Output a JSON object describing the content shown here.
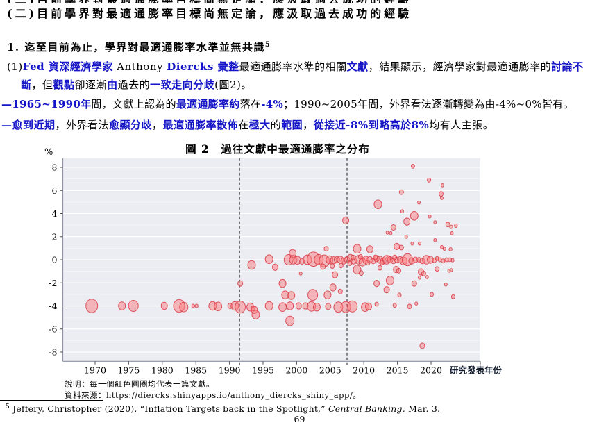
{
  "colors": {
    "text_blue": "#1414c8",
    "bubble_fill": "#f97b80",
    "bubble_stroke": "#d93a43",
    "plot_bg": "#ebedf2",
    "grid_line": "#ffffff",
    "dashed_line": "#333333",
    "axis_line": "#8a93a6"
  },
  "page": {
    "top_clipped_line": "(二)目前學界對最適通膨率目標尚無定論，應汲取過去成功的經驗",
    "heading": "(二)目前學界對最適通膨率目標尚無定論，應汲取過去成功的經驗",
    "point1": {
      "text": "1. 迄至目前為止，學界對最適通膨率水準並無共識",
      "footnote_ref": "5"
    },
    "para1": {
      "segments": [
        {
          "t": "(1)",
          "c": "blk"
        },
        {
          "t": "Fed 資深經濟學家",
          "c": "blu"
        },
        {
          "t": " Anthony ",
          "c": "blk"
        },
        {
          "t": "Diercks 彙整",
          "c": "blu"
        },
        {
          "t": "最適通膨率水準的相關",
          "c": "blk"
        },
        {
          "t": "文獻",
          "c": "blu"
        },
        {
          "t": "，結果顯示，經濟學家對最適通膨率的",
          "c": "blk"
        },
        {
          "t": "討論不斷",
          "c": "blu"
        },
        {
          "t": "，但",
          "c": "blk"
        },
        {
          "t": "觀點",
          "c": "blu"
        },
        {
          "t": "卻逐漸",
          "c": "blk"
        },
        {
          "t": "由",
          "c": "blu"
        },
        {
          "t": "過去的",
          "c": "blk"
        },
        {
          "t": "一致走向分歧",
          "c": "blu"
        },
        {
          "t": "(圖2)。",
          "c": "blk"
        }
      ]
    },
    "bullet1": {
      "segments": [
        {
          "t": "—1965~1990年",
          "c": "blu"
        },
        {
          "t": "間，文獻上認為的",
          "c": "blk"
        },
        {
          "t": "最適通膨率約",
          "c": "blu"
        },
        {
          "t": "落在",
          "c": "blk"
        },
        {
          "t": "-4%",
          "c": "blu"
        },
        {
          "t": "；1990~2005年間，外界看法逐漸轉變為由-4%~0%皆有。",
          "c": "blk"
        }
      ]
    },
    "bullet2": {
      "segments": [
        {
          "t": "—愈到近期",
          "c": "blu"
        },
        {
          "t": "，外界看法",
          "c": "blk"
        },
        {
          "t": "愈顯分歧",
          "c": "blu"
        },
        {
          "t": "，",
          "c": "blk"
        },
        {
          "t": "最適通膨率散佈",
          "c": "blu"
        },
        {
          "t": "在",
          "c": "blk"
        },
        {
          "t": "極大",
          "c": "blu"
        },
        {
          "t": "的",
          "c": "blk"
        },
        {
          "t": "範圍",
          "c": "blu"
        },
        {
          "t": "，",
          "c": "blk"
        },
        {
          "t": "從接近-8%到略高於8%",
          "c": "blu"
        },
        {
          "t": "均有人主張。",
          "c": "blk"
        }
      ]
    },
    "notes": {
      "explain": "說明：每一個紅色圓圈均代表一篇文獻。",
      "source": "資料來源：https://diercks.shinyapps.io/anthony_diercks_shiny_app/。"
    },
    "footnote": {
      "marker": "5",
      "before_italic": " Jeffery, Christopher (2020), “Inflation Targets back in the Spotlight,” ",
      "italic": "Central Banking",
      "after_italic": ", Mar. 3."
    },
    "page_number": "69"
  },
  "chart_data": {
    "type": "scatter",
    "title": "圖 2　過往文獻中最適通膨率之分布",
    "y_unit_label": "%",
    "xlabel": "研究發表年份",
    "x_ticks": [
      1970,
      1975,
      1980,
      1985,
      1990,
      1995,
      2000,
      2005,
      2010,
      2015,
      2020
    ],
    "y_ticks": [
      8,
      6,
      4,
      2,
      0,
      -2,
      -4,
      -6,
      -8
    ],
    "xlim": [
      1965.2,
      2027.3
    ],
    "ylim": [
      -8.8,
      8.8
    ],
    "grid": true,
    "dashed_lines_x": [
      1991.5,
      2007.5
    ],
    "bubble_note": "each bubble = one paper; [year, optimal inflation %, radius px]",
    "bubbles": [
      [
        1969.5,
        -4,
        8.5
      ],
      [
        1974,
        -4,
        5
      ],
      [
        1975.7,
        -4,
        7
      ],
      [
        1980.3,
        -4,
        4.5
      ],
      [
        1982.5,
        -4,
        8
      ],
      [
        1983.2,
        -4.1,
        6
      ],
      [
        1984.6,
        -4,
        2.2
      ],
      [
        1985.1,
        -4,
        2.2
      ],
      [
        1987.5,
        -4,
        5.5
      ],
      [
        1988.3,
        -4.05,
        5.5
      ],
      [
        1990.1,
        -4,
        3.5
      ],
      [
        1990.8,
        -4,
        5.5
      ],
      [
        1991.6,
        -4.1,
        7.5
      ],
      [
        1993.1,
        -4.1,
        5
      ],
      [
        1993.5,
        -4.2,
        3
      ],
      [
        1993.7,
        -4.35,
        4.5
      ],
      [
        1993.9,
        -4.75,
        5.5
      ],
      [
        1995.9,
        -4,
        5.5
      ],
      [
        1997.9,
        -4.1,
        5.5
      ],
      [
        1999,
        -4,
        5
      ],
      [
        2000.3,
        -4,
        4
      ],
      [
        2001.3,
        -4,
        4
      ],
      [
        2002.2,
        -4.05,
        6
      ],
      [
        2003,
        -4.1,
        5
      ],
      [
        2004.7,
        -4.05,
        4
      ],
      [
        2006.2,
        -4.1,
        6.5
      ],
      [
        2007.3,
        -4.1,
        7
      ],
      [
        2008.3,
        -4.05,
        7
      ],
      [
        2010.2,
        -4.1,
        5.5
      ],
      [
        2010.7,
        -4.05,
        4.5
      ],
      [
        2011.9,
        -3.85,
        2.5
      ],
      [
        2014.6,
        -3.95,
        2.5
      ],
      [
        2016.8,
        -4.05,
        3
      ],
      [
        2017.8,
        -3.8,
        2
      ],
      [
        1999,
        -5.3,
        6
      ],
      [
        2018.7,
        -7.45,
        3.5
      ],
      [
        1991.6,
        -2.05,
        3.5
      ],
      [
        1997.9,
        -2.05,
        5
      ],
      [
        1998.3,
        -3.05,
        5
      ],
      [
        1999.2,
        -3.1,
        5
      ],
      [
        2002.4,
        -3.05,
        7
      ],
      [
        2004.6,
        -3.05,
        5
      ],
      [
        2005.4,
        -2.4,
        4.5
      ],
      [
        2005.7,
        -1.3,
        4
      ],
      [
        2006.5,
        -2.75,
        3
      ],
      [
        2011.9,
        -2.05,
        4
      ],
      [
        2013.9,
        -1.8,
        5.5
      ],
      [
        2013.4,
        -2.6,
        4
      ],
      [
        2015.3,
        -3.05,
        2.5
      ],
      [
        2017.5,
        -2.05,
        3.5
      ],
      [
        2018.3,
        -1.55,
        2
      ],
      [
        2019.4,
        -1.5,
        2
      ],
      [
        2020.1,
        -3,
        2.5
      ],
      [
        2022.2,
        -2.15,
        2
      ],
      [
        2023.3,
        -3.2,
        2.5
      ],
      [
        1993.3,
        -0.45,
        5.5
      ],
      [
        1996.8,
        -0.65,
        4
      ],
      [
        2000.6,
        -1.2,
        2
      ],
      [
        2009,
        -0.85,
        5.5
      ],
      [
        2009.6,
        -1.15,
        3
      ],
      [
        2012.4,
        -0.7,
        3
      ],
      [
        2014.8,
        -0.85,
        4
      ],
      [
        2015.2,
        -0.95,
        3
      ],
      [
        2018.5,
        -1.05,
        4
      ],
      [
        2018.9,
        -1.2,
        3
      ],
      [
        2020.9,
        -0.8,
        3
      ],
      [
        2022.7,
        -0.95,
        2
      ],
      [
        2023,
        -0.9,
        2
      ],
      [
        1995.9,
        0.05,
        5.5
      ],
      [
        1999.4,
        0.55,
        5
      ],
      [
        2004.4,
        0.95,
        3
      ],
      [
        2009,
        0.95,
        5.5
      ],
      [
        2010.9,
        0.9,
        4.5
      ],
      [
        2014.9,
        1.15,
        4
      ],
      [
        2015.6,
        1.05,
        3
      ],
      [
        2017.2,
        1.4,
        2
      ],
      [
        2018.3,
        1.4,
        2
      ],
      [
        2020.6,
        1.7,
        2
      ],
      [
        2021.6,
        1.1,
        2
      ],
      [
        2022,
        0.95,
        2
      ],
      [
        2022.9,
        0.9,
        2.2
      ],
      [
        2007.3,
        3.4,
        4.5
      ],
      [
        2012.1,
        4.8,
        5.5
      ],
      [
        2013.5,
        2.35,
        2
      ],
      [
        2014,
        2.3,
        2
      ],
      [
        2014.4,
        2.8,
        3.5
      ],
      [
        2015.7,
        4.2,
        2
      ],
      [
        2015.6,
        5.85,
        3
      ],
      [
        2016.4,
        3.3,
        4.5
      ],
      [
        2016.3,
        2,
        2
      ],
      [
        2017.5,
        3.8,
        5.5
      ],
      [
        2018.2,
        4.95,
        2
      ],
      [
        2017.3,
        8.1,
        2.5
      ],
      [
        2019.7,
        6.9,
        2.5
      ],
      [
        2019.8,
        3.75,
        2
      ],
      [
        2020.6,
        3.25,
        2
      ],
      [
        2021.7,
        6.45,
        2
      ],
      [
        2021.5,
        5.7,
        3
      ],
      [
        2021.6,
        5.35,
        2
      ],
      [
        2022.5,
        3.05,
        3
      ],
      [
        2023,
        2.85,
        2.2
      ],
      [
        2023.7,
        2.95,
        2.2
      ],
      [
        2023.1,
        2.3,
        2
      ],
      [
        1998.8,
        0,
        6.5
      ],
      [
        1999.5,
        0,
        5.5
      ],
      [
        2000.1,
        -0.05,
        5
      ],
      [
        2000.8,
        -0.15,
        3.5
      ],
      [
        2001.6,
        0,
        6
      ],
      [
        2002.5,
        0.05,
        9
      ],
      [
        2003.3,
        0,
        6.5
      ],
      [
        2004.1,
        -0.1,
        7.5
      ],
      [
        2004.9,
        0,
        5
      ],
      [
        2005.5,
        -0.05,
        4.5
      ],
      [
        2006,
        0,
        4
      ],
      [
        2006.5,
        0,
        4.5
      ],
      [
        2007,
        -0.1,
        4
      ],
      [
        2007.5,
        0,
        4
      ],
      [
        2008,
        0.15,
        4.5
      ],
      [
        2008.5,
        -0.1,
        4
      ],
      [
        2009.2,
        0,
        5.5
      ],
      [
        2009.8,
        -0.2,
        5
      ],
      [
        2010.3,
        0,
        4.5
      ],
      [
        2010.9,
        0,
        4
      ],
      [
        2011.4,
        -0.1,
        3.5
      ],
      [
        2011.9,
        0.1,
        4
      ],
      [
        2012.4,
        0,
        4.5
      ],
      [
        2012.9,
        -0.1,
        4
      ],
      [
        2013.4,
        0,
        5.5
      ],
      [
        2013.9,
        0,
        4
      ],
      [
        2014.4,
        -0.1,
        3.5
      ],
      [
        2014.9,
        0,
        3.5
      ],
      [
        2015.4,
        0,
        4
      ],
      [
        2015.9,
        -0.1,
        5
      ],
      [
        2016.5,
        0,
        7.5
      ],
      [
        2017.1,
        -0.1,
        4
      ],
      [
        2017.7,
        0,
        3.5
      ],
      [
        2018.2,
        0,
        3
      ],
      [
        2018.7,
        -0.1,
        3.5
      ],
      [
        2019.3,
        0,
        5.5
      ],
      [
        2019.9,
        0,
        4.5
      ],
      [
        2020.5,
        -0.05,
        3
      ],
      [
        2020.9,
        0.1,
        2.5
      ],
      [
        2021.3,
        0,
        2.5
      ],
      [
        2021.8,
        -0.1,
        2.5
      ],
      [
        2022.3,
        0,
        2.5
      ],
      [
        2022.8,
        0,
        2.5
      ],
      [
        2023.2,
        -0.05,
        2.2
      ],
      [
        2007.9,
        -0.3,
        3
      ],
      [
        2008.4,
        0.2,
        3
      ],
      [
        2009.5,
        0.25,
        3
      ],
      [
        2010.6,
        -0.25,
        3
      ],
      [
        2011.7,
        0.2,
        3
      ],
      [
        2012.7,
        -0.25,
        3
      ],
      [
        2013.7,
        0.15,
        3
      ],
      [
        2014.6,
        0.2,
        3
      ],
      [
        2003.9,
        -0.6,
        3.5
      ],
      [
        2005.3,
        -0.55,
        3
      ],
      [
        2006.6,
        -0.5,
        3
      ]
    ]
  }
}
